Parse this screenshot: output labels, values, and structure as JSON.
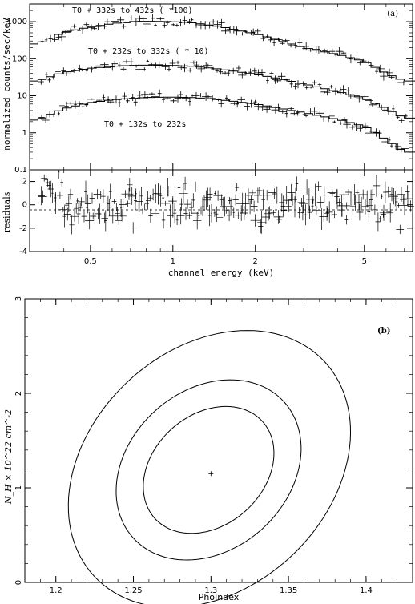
{
  "chart_data": [
    {
      "type": "scatter",
      "panel_label": "(a)",
      "xlabel": "channel energy (keV)",
      "ylabel": "normalized counts/sec/keV",
      "residual_label": "residuals",
      "x_scale": "log",
      "y_scale": "log",
      "xlim": [
        0.3,
        7.5
      ],
      "ylim": [
        0.1,
        3000
      ],
      "residual_ylim": [
        -4,
        3
      ],
      "x_ticks": [
        "0.5",
        "1",
        "2",
        "5"
      ],
      "y_ticks": [
        "0.1",
        "1",
        "10",
        "100",
        "1000"
      ],
      "residual_ticks": [
        "-4",
        "-2",
        "0",
        "2"
      ],
      "annotations": [
        "T0 + 332s to 432s ( *100)",
        "T0 + 232s to 332s ( * 10)",
        "T0 + 132s to 232s"
      ],
      "series": [
        {
          "name": "T0 + 332s to 432s ( *100)",
          "x": [
            0.32,
            0.4,
            0.5,
            0.6,
            0.7,
            0.8,
            1.0,
            1.2,
            1.5,
            2.0,
            2.5,
            3.0,
            4.0,
            5.0,
            6.0,
            7.0
          ],
          "y": [
            250,
            520,
            720,
            880,
            1000,
            1030,
            1000,
            920,
            730,
            470,
            300,
            200,
            130,
            85,
            40,
            25
          ]
        },
        {
          "name": "T0 + 232s to 332s ( * 10)",
          "x": [
            0.32,
            0.4,
            0.5,
            0.6,
            0.7,
            0.8,
            1.0,
            1.2,
            1.5,
            2.0,
            2.5,
            3.0,
            4.0,
            5.0,
            6.0,
            7.0
          ],
          "y": [
            25,
            43,
            55,
            62,
            66,
            67,
            66,
            62,
            52,
            38,
            28,
            21,
            13,
            8.5,
            4.5,
            2.5
          ]
        },
        {
          "name": "T0 + 132s to 232s",
          "x": [
            0.32,
            0.4,
            0.5,
            0.6,
            0.7,
            0.8,
            1.0,
            1.2,
            1.5,
            2.0,
            2.5,
            3.0,
            4.0,
            5.0,
            6.0,
            7.0
          ],
          "y": [
            2.2,
            4.5,
            6.5,
            7.8,
            8.5,
            9.0,
            9.2,
            8.9,
            7.8,
            6.0,
            4.5,
            3.5,
            2.3,
            1.5,
            0.65,
            0.3
          ]
        }
      ]
    },
    {
      "type": "scatter",
      "panel_label": "(b)",
      "xlabel": "PhoIndex",
      "ylabel": "N_H × 10^22 cm^-2",
      "xlim": [
        1.18,
        1.43
      ],
      "ylim": [
        0,
        3
      ],
      "x_ticks": [
        "1.2",
        "1.25",
        "1.3",
        "1.35",
        "1.4"
      ],
      "y_ticks": [
        "0",
        "1",
        "2",
        "3"
      ],
      "best_fit": {
        "x": 1.3,
        "y": 1.15
      },
      "contours": [
        {
          "cx": 1.2985,
          "cy": 1.19,
          "rx": 0.0467,
          "ry": 0.584,
          "rotate": -0.73
        },
        {
          "cx": 1.2985,
          "cy": 1.19,
          "rx": 0.0655,
          "ry": 0.843,
          "rotate": -0.73
        },
        {
          "cx": 1.299,
          "cy": 1.2,
          "rx": 0.1015,
          "ry": 1.265,
          "rotate": -0.75
        }
      ]
    }
  ]
}
